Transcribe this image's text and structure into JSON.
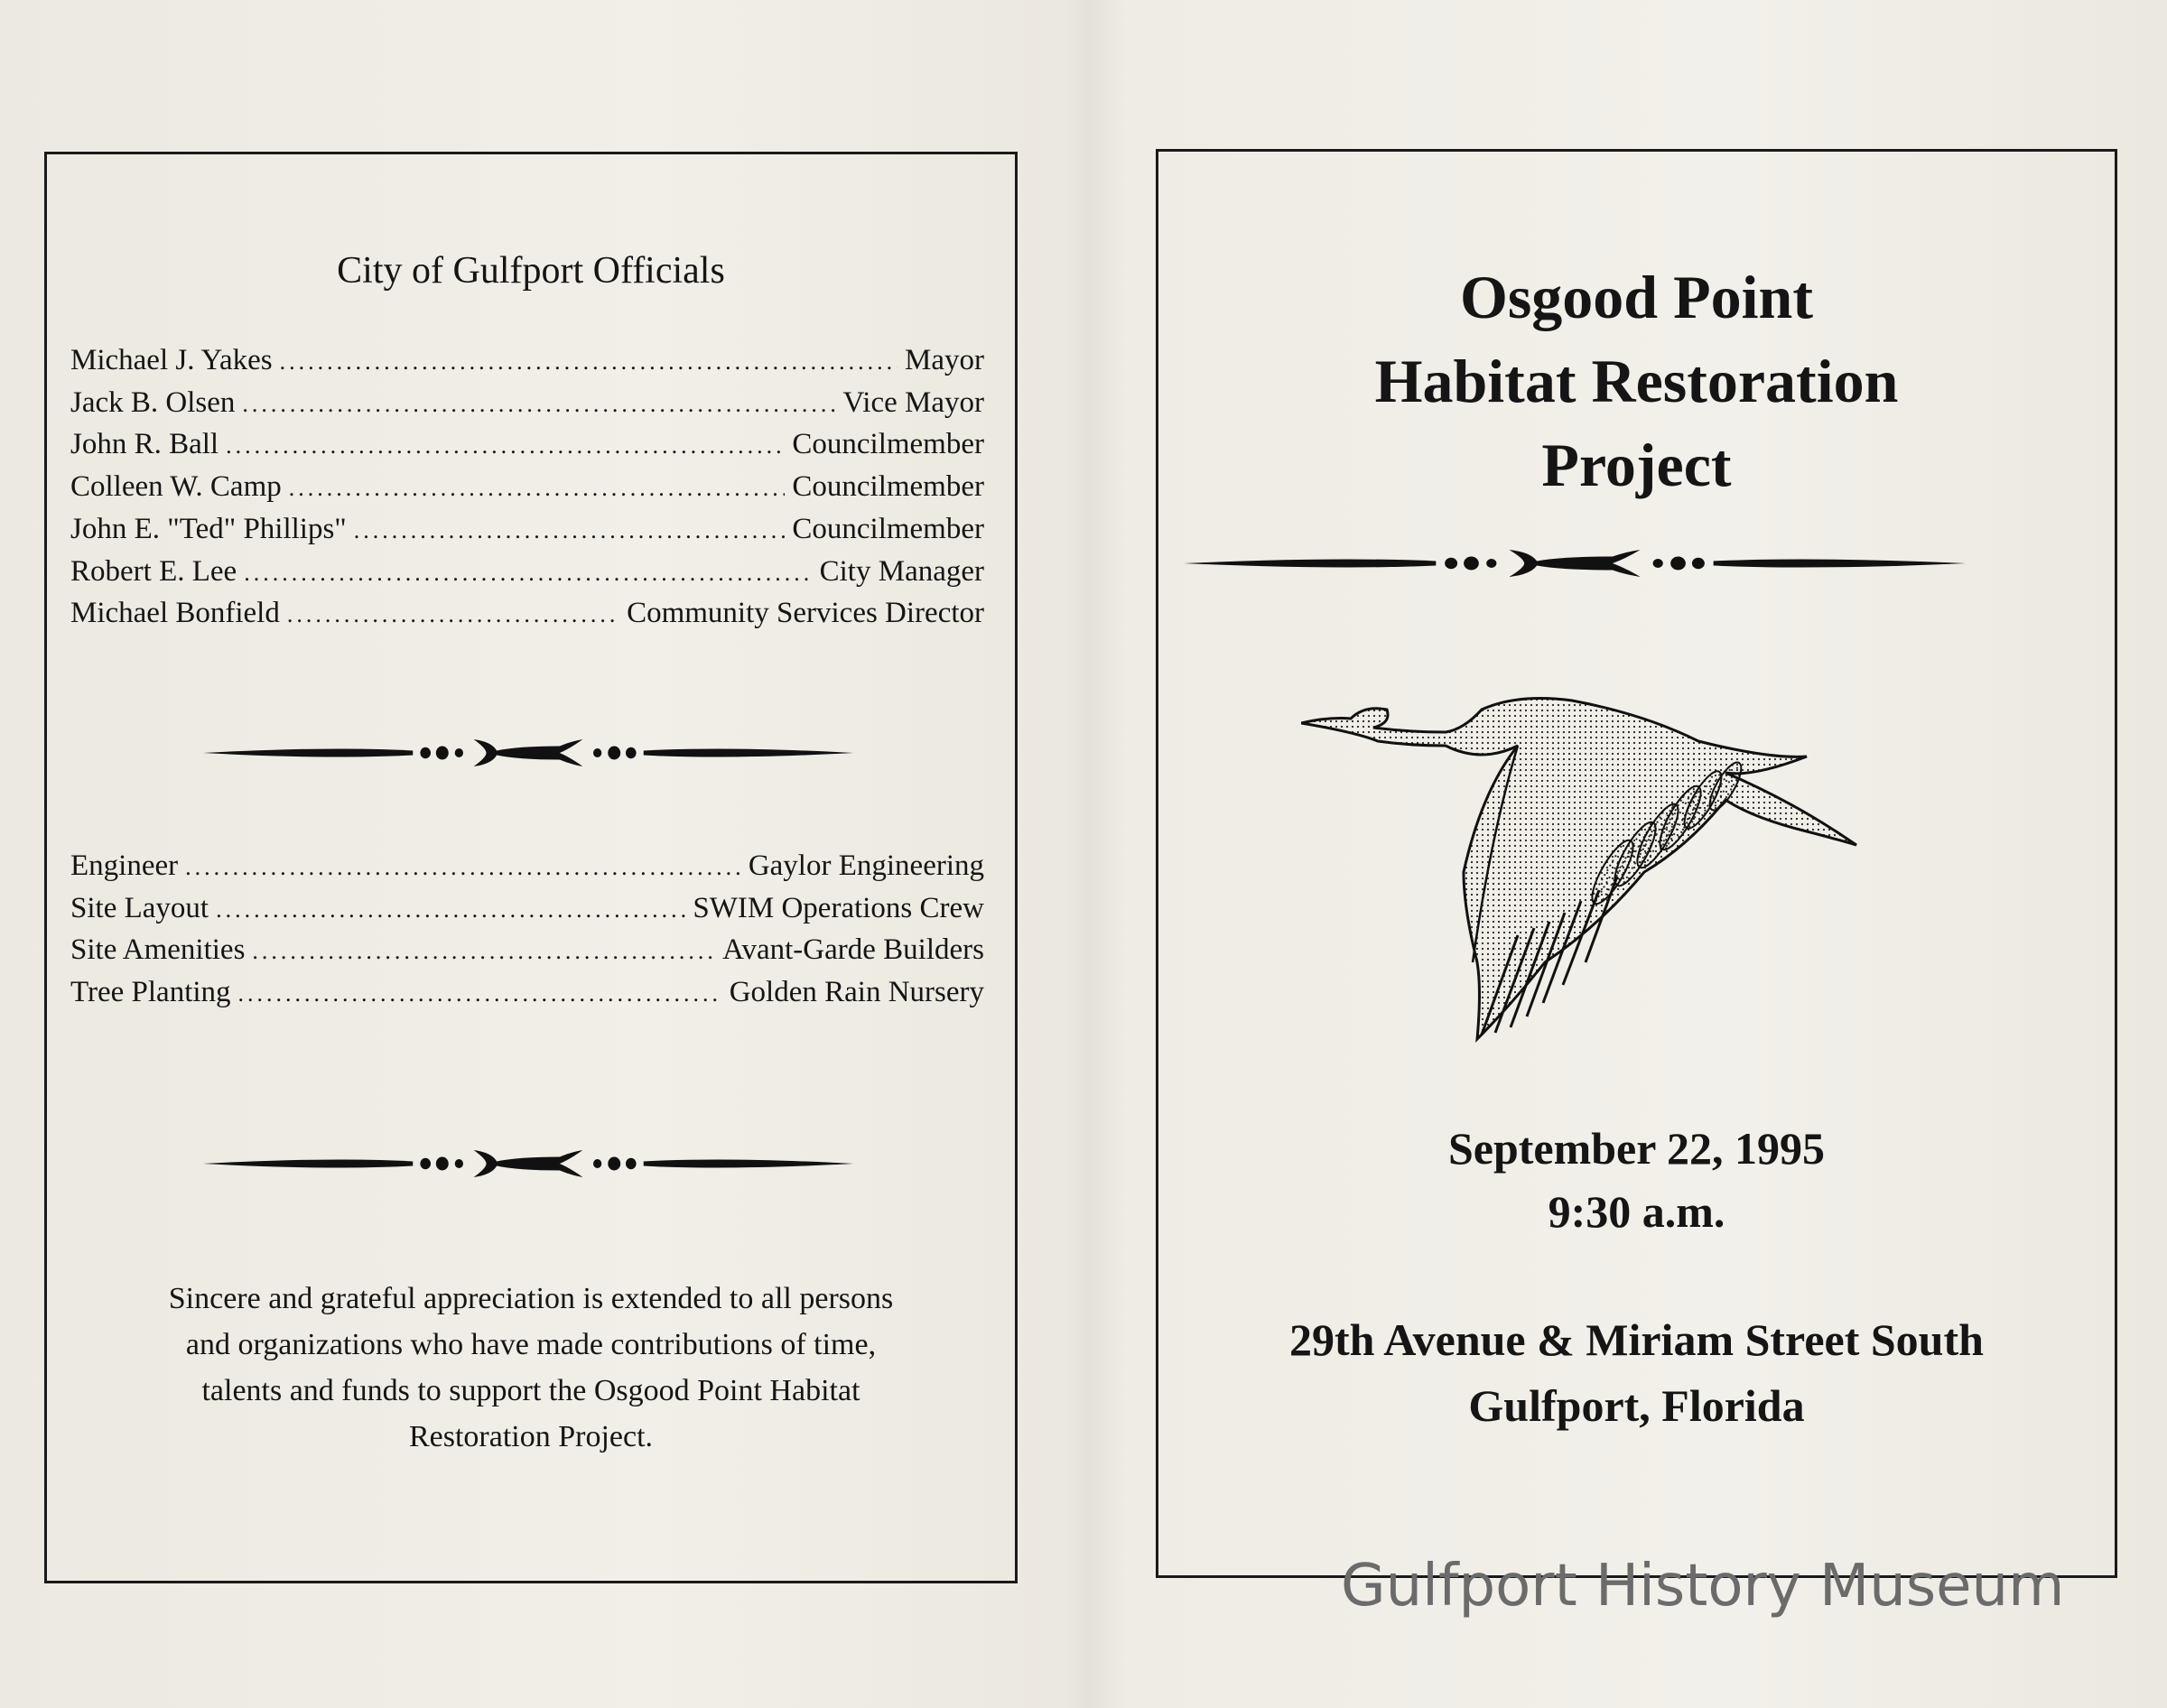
{
  "left_panel": {
    "heading": "City of Gulfport Officials",
    "officials": [
      {
        "name": "Michael J. Yakes",
        "role": "Mayor"
      },
      {
        "name": "Jack B. Olsen",
        "role": "Vice Mayor"
      },
      {
        "name": "John R. Ball",
        "role": "Councilmember"
      },
      {
        "name": "Colleen W. Camp",
        "role": "Councilmember"
      },
      {
        "name": "John E. \"Ted\" Phillips\"",
        "role": "Councilmember"
      },
      {
        "name": "Robert E. Lee",
        "role": "City Manager"
      },
      {
        "name": "Michael Bonfield",
        "role": "Community Services Director"
      }
    ],
    "contributors": [
      {
        "name": "Engineer",
        "role": "Gaylor Engineering"
      },
      {
        "name": "Site Layout",
        "role": "SWIM Operations Crew"
      },
      {
        "name": "Site Amenities",
        "role": "Avant-Garde Builders"
      },
      {
        "name": "Tree Planting",
        "role": "Golden Rain Nursery"
      }
    ],
    "appreciation": [
      "Sincere and grateful appreciation is extended to all persons",
      "and organizations who have made contributions of time,",
      "talents and funds to support the Osgood Point Habitat",
      "Restoration Project."
    ]
  },
  "right_panel": {
    "title_lines": [
      "Osgood Point",
      "Habitat Restoration",
      "Project"
    ],
    "date": "September 22, 1995",
    "time": "9:30 a.m.",
    "address": "29th Avenue & Miriam Street South",
    "city": "Gulfport, Florida",
    "illustration": "flying-heron"
  },
  "watermark": "Gulfport History Museum",
  "colors": {
    "paper": "#efece5",
    "ink": "#151515",
    "watermark": "#6b6b6b"
  }
}
